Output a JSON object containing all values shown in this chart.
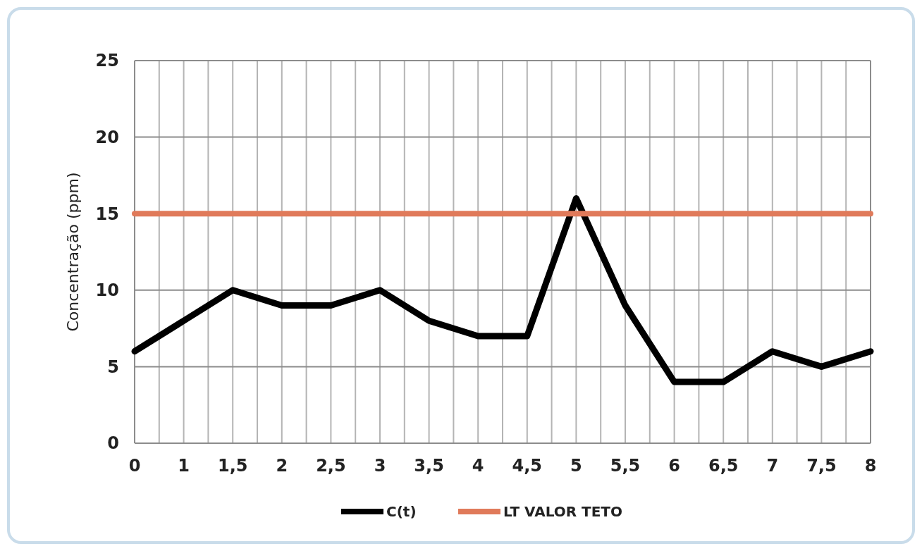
{
  "chart_data": {
    "type": "line",
    "ylabel": "Concentração (ppm)",
    "categories": [
      "0",
      "1",
      "1,5",
      "2",
      "2,5",
      "3",
      "3,5",
      "4",
      "4,5",
      "5",
      "5,5",
      "6",
      "6,5",
      "7",
      "7,5",
      "8"
    ],
    "series": [
      {
        "name": "C(t)",
        "color": "#000000",
        "values": [
          6,
          8,
          10,
          9,
          9,
          10,
          8,
          7,
          7,
          16,
          9,
          4,
          4,
          6,
          5,
          6
        ]
      },
      {
        "name": "LT VALOR TETO",
        "color": "#e07a5a",
        "values": [
          15,
          15,
          15,
          15,
          15,
          15,
          15,
          15,
          15,
          15,
          15,
          15,
          15,
          15,
          15,
          15
        ]
      }
    ],
    "ylim": [
      0,
      25
    ],
    "yticks": [
      0,
      5,
      10,
      15,
      20,
      25
    ],
    "grid": true,
    "legend": "bottom",
    "marker": "none",
    "line_style": "solid"
  }
}
